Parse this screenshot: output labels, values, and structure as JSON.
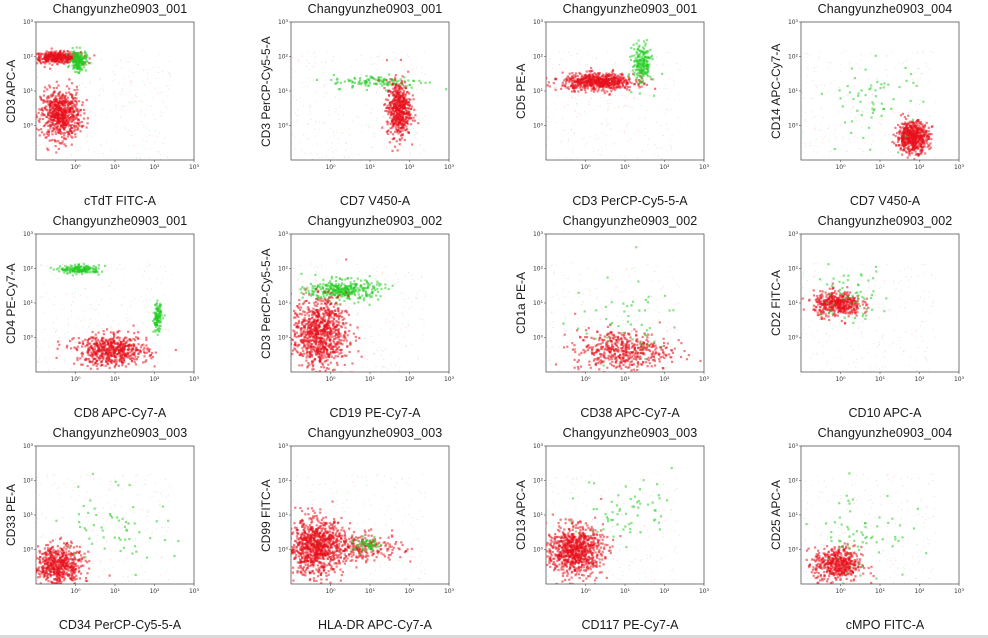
{
  "chart_data": [
    {
      "type": "scatter",
      "title": "Changyunzhe0903_001",
      "xlabel": "cTdT FITC-A",
      "ylabel": "CD3 APC-A",
      "x_ticks": [
        "10⁰",
        "10¹",
        "10²",
        "10³"
      ],
      "y_ticks": [
        "10⁰",
        "10¹",
        "10²",
        "10³"
      ],
      "x_range": [
        -1,
        3
      ],
      "y_range": [
        -1,
        3
      ],
      "populations": [
        {
          "color": "#e8101c",
          "cx": -0.5,
          "cy": 2.0,
          "sx": 0.3,
          "sy": 0.08,
          "n": 400
        },
        {
          "color": "#e8101c",
          "cx": -0.4,
          "cy": 0.35,
          "sx": 0.25,
          "sy": 0.35,
          "n": 700
        },
        {
          "color": "#22cc22",
          "cx": 0.05,
          "cy": 1.9,
          "sx": 0.1,
          "sy": 0.15,
          "n": 180
        }
      ]
    },
    {
      "type": "scatter",
      "title": "Changyunzhe0903_001",
      "xlabel": "CD7 V450-A",
      "ylabel": "CD3 PerCP-Cy5-5-A",
      "x_ticks": [
        "10⁰",
        "10¹",
        "10²",
        "10³"
      ],
      "y_ticks": [
        "10⁰",
        "10¹",
        "10²",
        "10³"
      ],
      "x_range": [
        -1,
        3
      ],
      "y_range": [
        -1,
        3
      ],
      "populations": [
        {
          "color": "#22cc22",
          "cx": 1.2,
          "cy": 1.3,
          "sx": 0.6,
          "sy": 0.1,
          "n": 120
        },
        {
          "color": "#e8101c",
          "cx": 1.7,
          "cy": 0.5,
          "sx": 0.15,
          "sy": 0.4,
          "n": 550
        }
      ]
    },
    {
      "type": "scatter",
      "title": "Changyunzhe0903_001",
      "xlabel": "CD3 PerCP-Cy5-5-A",
      "ylabel": "CD5 PE-A",
      "x_ticks": [
        "10⁰",
        "10¹",
        "10²",
        "10³"
      ],
      "y_ticks": [
        "10⁰",
        "10¹",
        "10²",
        "10³"
      ],
      "x_range": [
        -1,
        3
      ],
      "y_range": [
        -1,
        3
      ],
      "populations": [
        {
          "color": "#e8101c",
          "cx": 0.3,
          "cy": 1.3,
          "sx": 0.45,
          "sy": 0.12,
          "n": 650
        },
        {
          "color": "#22cc22",
          "cx": 1.4,
          "cy": 1.8,
          "sx": 0.12,
          "sy": 0.3,
          "n": 200
        }
      ]
    },
    {
      "type": "scatter",
      "title": "Changyunzhe0903_004",
      "xlabel": "CD7 V450-A",
      "ylabel": "CD14 APC-Cy7-A",
      "x_ticks": [
        "10⁰",
        "10¹",
        "10²",
        "10³"
      ],
      "y_ticks": [
        "10⁰",
        "10¹",
        "10²",
        "10³"
      ],
      "x_range": [
        -1,
        3
      ],
      "y_range": [
        -1,
        3
      ],
      "populations": [
        {
          "color": "#e8101c",
          "cx": 1.8,
          "cy": -0.3,
          "sx": 0.2,
          "sy": 0.22,
          "n": 600
        },
        {
          "color": "#22cc22",
          "cx": 0.8,
          "cy": 0.8,
          "sx": 0.6,
          "sy": 0.6,
          "n": 60
        }
      ]
    },
    {
      "type": "scatter",
      "title": "Changyunzhe0903_001",
      "xlabel": "CD8 APC-Cy7-A",
      "ylabel": "CD4 PE-Cy7-A",
      "x_ticks": [
        "10⁰",
        "10¹",
        "10²",
        "10³"
      ],
      "y_ticks": [
        "10⁰",
        "10¹",
        "10²",
        "10³"
      ],
      "x_range": [
        -1,
        3
      ],
      "y_range": [
        -1,
        3
      ],
      "populations": [
        {
          "color": "#22cc22",
          "cx": 0.1,
          "cy": 2.0,
          "sx": 0.25,
          "sy": 0.06,
          "n": 180
        },
        {
          "color": "#22cc22",
          "cx": 2.05,
          "cy": 0.6,
          "sx": 0.05,
          "sy": 0.2,
          "n": 120
        },
        {
          "color": "#e8101c",
          "cx": 0.9,
          "cy": -0.35,
          "sx": 0.45,
          "sy": 0.22,
          "n": 600
        }
      ]
    },
    {
      "type": "scatter",
      "title": "Changyunzhe0903_002",
      "xlabel": "CD19 PE-Cy7-A",
      "ylabel": "CD3 PerCP-Cy5-5-A",
      "x_ticks": [
        "10⁰",
        "10¹",
        "10²",
        "10³"
      ],
      "y_ticks": [
        "10⁰",
        "10¹",
        "10²",
        "10³"
      ],
      "x_range": [
        -1,
        3
      ],
      "y_range": [
        -1,
        3
      ],
      "populations": [
        {
          "color": "#22cc22",
          "cx": 0.3,
          "cy": 1.4,
          "sx": 0.45,
          "sy": 0.15,
          "n": 350
        },
        {
          "color": "#e8101c",
          "cx": -0.3,
          "cy": 0.15,
          "sx": 0.35,
          "sy": 0.5,
          "n": 900
        }
      ]
    },
    {
      "type": "scatter",
      "title": "Changyunzhe0903_002",
      "xlabel": "CD38 APC-Cy7-A",
      "ylabel": "CD1a PE-A",
      "x_ticks": [
        "10⁰",
        "10¹",
        "10²",
        "10³"
      ],
      "y_ticks": [
        "10⁰",
        "10¹",
        "10²",
        "10³"
      ],
      "x_range": [
        -1,
        3
      ],
      "y_range": [
        -1,
        3
      ],
      "populations": [
        {
          "color": "#e8101c",
          "cx": 0.9,
          "cy": -0.35,
          "sx": 0.6,
          "sy": 0.3,
          "n": 500
        },
        {
          "color": "#22cc22",
          "cx": 1.0,
          "cy": 0.5,
          "sx": 0.7,
          "sy": 0.6,
          "n": 50
        }
      ]
    },
    {
      "type": "scatter",
      "title": "Changyunzhe0903_002",
      "xlabel": "CD10 APC-A",
      "ylabel": "CD2 FITC-A",
      "x_ticks": [
        "10⁰",
        "10¹",
        "10²",
        "10³"
      ],
      "y_ticks": [
        "10⁰",
        "10¹",
        "10²",
        "10³"
      ],
      "x_range": [
        -1,
        3
      ],
      "y_range": [
        -1,
        3
      ],
      "populations": [
        {
          "color": "#e8101c",
          "cx": -0.1,
          "cy": 1.0,
          "sx": 0.3,
          "sy": 0.18,
          "n": 450
        },
        {
          "color": "#22cc22",
          "cx": 0.2,
          "cy": 1.3,
          "sx": 0.5,
          "sy": 0.4,
          "n": 60
        }
      ]
    },
    {
      "type": "scatter",
      "title": "Changyunzhe0903_003",
      "xlabel": "CD34 PerCP-Cy5-5-A",
      "ylabel": "CD33 PE-A",
      "x_ticks": [
        "10⁰",
        "10¹",
        "10²",
        "10³"
      ],
      "y_ticks": [
        "10⁰",
        "10¹",
        "10²",
        "10³"
      ],
      "x_range": [
        -1,
        3
      ],
      "y_range": [
        -1,
        3
      ],
      "populations": [
        {
          "color": "#e8101c",
          "cx": -0.45,
          "cy": -0.45,
          "sx": 0.3,
          "sy": 0.3,
          "n": 600
        },
        {
          "color": "#22cc22",
          "cx": 1.0,
          "cy": 0.8,
          "sx": 0.7,
          "sy": 0.6,
          "n": 60
        }
      ]
    },
    {
      "type": "scatter",
      "title": "Changyunzhe0903_003",
      "xlabel": "HLA-DR APC-Cy7-A",
      "ylabel": "CD99 FITC-A",
      "x_ticks": [
        "10⁰",
        "10¹",
        "10²",
        "10³"
      ],
      "y_ticks": [
        "10⁰",
        "10¹",
        "10²",
        "10³"
      ],
      "x_range": [
        -1,
        3
      ],
      "y_range": [
        -1,
        3
      ],
      "populations": [
        {
          "color": "#e8101c",
          "cx": -0.4,
          "cy": 0.1,
          "sx": 0.35,
          "sy": 0.4,
          "n": 900
        },
        {
          "color": "#e8101c",
          "cx": 0.8,
          "cy": 0.1,
          "sx": 0.5,
          "sy": 0.2,
          "n": 250
        },
        {
          "color": "#22cc22",
          "cx": 0.9,
          "cy": 0.15,
          "sx": 0.2,
          "sy": 0.1,
          "n": 60
        }
      ]
    },
    {
      "type": "scatter",
      "title": "Changyunzhe0903_003",
      "xlabel": "CD117 PE-Cy7-A",
      "ylabel": "CD13 APC-A",
      "x_ticks": [
        "10⁰",
        "10¹",
        "10²",
        "10³"
      ],
      "y_ticks": [
        "10⁰",
        "10¹",
        "10²",
        "10³"
      ],
      "x_range": [
        -1,
        3
      ],
      "y_range": [
        -1,
        3
      ],
      "populations": [
        {
          "color": "#e8101c",
          "cx": -0.3,
          "cy": 0.0,
          "sx": 0.35,
          "sy": 0.35,
          "n": 850
        },
        {
          "color": "#22cc22",
          "cx": 1.0,
          "cy": 1.2,
          "sx": 0.6,
          "sy": 0.5,
          "n": 60
        }
      ]
    },
    {
      "type": "scatter",
      "title": "Changyunzhe0903_004",
      "xlabel": "cMPO FITC-A",
      "ylabel": "CD25 APC-A",
      "x_ticks": [
        "10⁰",
        "10¹",
        "10²",
        "10³"
      ],
      "y_ticks": [
        "10⁰",
        "10¹",
        "10²",
        "10³"
      ],
      "x_range": [
        -1,
        3
      ],
      "y_range": [
        -1,
        3
      ],
      "populations": [
        {
          "color": "#e8101c",
          "cx": -0.1,
          "cy": -0.4,
          "sx": 0.3,
          "sy": 0.25,
          "n": 500
        },
        {
          "color": "#22cc22",
          "cx": 0.5,
          "cy": 0.5,
          "sx": 0.6,
          "sy": 0.7,
          "n": 70
        }
      ]
    }
  ]
}
